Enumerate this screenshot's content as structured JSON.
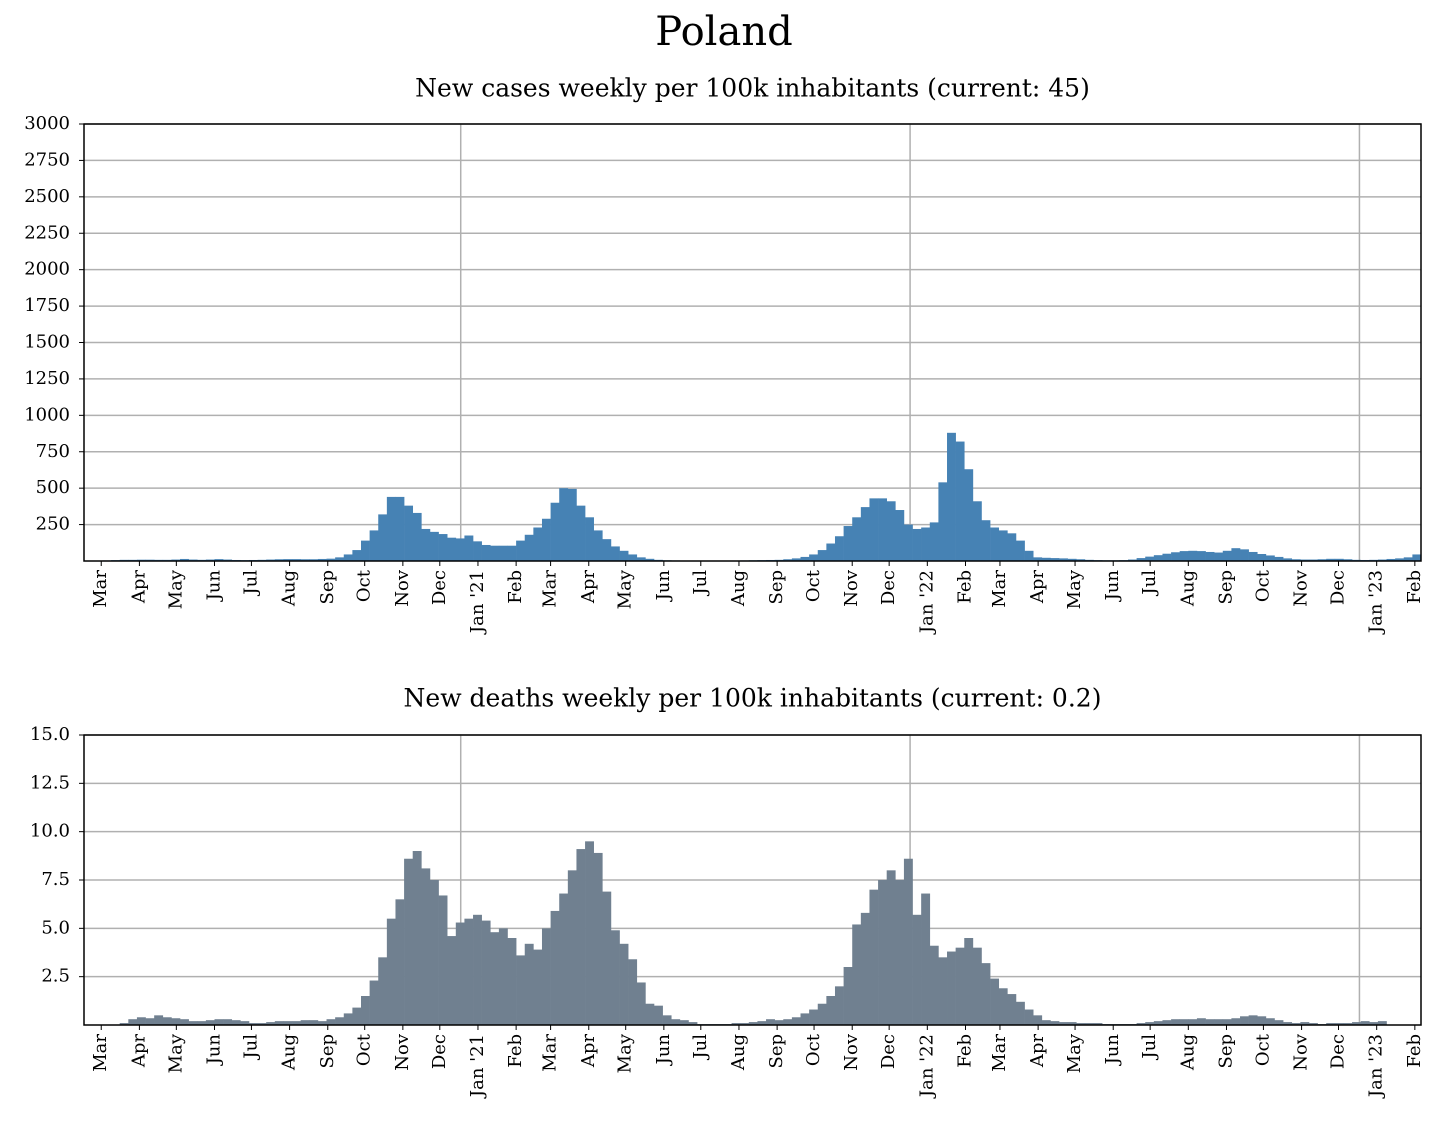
{
  "title": "Poland",
  "chart_data": [
    {
      "type": "bar",
      "title": "New cases weekly per 100k inhabitants (current: 45)",
      "color": "#4682b4",
      "x": [
        "2020-03-02",
        "2020-03-09",
        "2020-03-16",
        "2020-03-23",
        "2020-03-30",
        "2020-04-06",
        "2020-04-13",
        "2020-04-20",
        "2020-04-27",
        "2020-05-04",
        "2020-05-11",
        "2020-05-18",
        "2020-05-25",
        "2020-06-01",
        "2020-06-08",
        "2020-06-15",
        "2020-06-22",
        "2020-06-29",
        "2020-07-06",
        "2020-07-13",
        "2020-07-20",
        "2020-07-27",
        "2020-08-03",
        "2020-08-10",
        "2020-08-17",
        "2020-08-24",
        "2020-08-31",
        "2020-09-07",
        "2020-09-14",
        "2020-09-21",
        "2020-09-28",
        "2020-10-05",
        "2020-10-12",
        "2020-10-19",
        "2020-10-26",
        "2020-11-02",
        "2020-11-09",
        "2020-11-16",
        "2020-11-23",
        "2020-11-30",
        "2020-12-07",
        "2020-12-14",
        "2020-12-21",
        "2020-12-28",
        "2021-01-04",
        "2021-01-11",
        "2021-01-18",
        "2021-01-25",
        "2021-02-01",
        "2021-02-08",
        "2021-02-15",
        "2021-02-22",
        "2021-03-01",
        "2021-03-08",
        "2021-03-15",
        "2021-03-22",
        "2021-03-29",
        "2021-04-05",
        "2021-04-12",
        "2021-04-19",
        "2021-04-26",
        "2021-05-03",
        "2021-05-10",
        "2021-05-17",
        "2021-05-24",
        "2021-05-31",
        "2021-06-07",
        "2021-06-14",
        "2021-06-21",
        "2021-06-28",
        "2021-07-05",
        "2021-07-12",
        "2021-07-19",
        "2021-07-26",
        "2021-08-02",
        "2021-08-09",
        "2021-08-16",
        "2021-08-23",
        "2021-08-30",
        "2021-09-06",
        "2021-09-13",
        "2021-09-20",
        "2021-09-27",
        "2021-10-04",
        "2021-10-11",
        "2021-10-18",
        "2021-10-25",
        "2021-11-01",
        "2021-11-08",
        "2021-11-15",
        "2021-11-22",
        "2021-11-29",
        "2021-12-06",
        "2021-12-13",
        "2021-12-20",
        "2021-12-27",
        "2022-01-03",
        "2022-01-10",
        "2022-01-17",
        "2022-01-24",
        "2022-01-31",
        "2022-02-07",
        "2022-02-14",
        "2022-02-21",
        "2022-02-28",
        "2022-03-07",
        "2022-03-14",
        "2022-03-21",
        "2022-03-28",
        "2022-04-04",
        "2022-04-11",
        "2022-04-18",
        "2022-04-25",
        "2022-05-02",
        "2022-05-09",
        "2022-05-16",
        "2022-05-23",
        "2022-05-30",
        "2022-06-06",
        "2022-06-13",
        "2022-06-20",
        "2022-06-27",
        "2022-07-04",
        "2022-07-11",
        "2022-07-18",
        "2022-07-25",
        "2022-08-01",
        "2022-08-08",
        "2022-08-15",
        "2022-08-22",
        "2022-08-29",
        "2022-09-05",
        "2022-09-12",
        "2022-09-19",
        "2022-09-26",
        "2022-10-03",
        "2022-10-10",
        "2022-10-17",
        "2022-10-24",
        "2022-10-31",
        "2022-11-07",
        "2022-11-14",
        "2022-11-21",
        "2022-11-28",
        "2022-12-05",
        "2022-12-12",
        "2022-12-19",
        "2022-12-26",
        "2023-01-02",
        "2023-01-09",
        "2023-01-16",
        "2023-01-23",
        "2023-01-30",
        "2023-02-06",
        "2023-02-13"
      ],
      "values": [
        1,
        2,
        4,
        6,
        8,
        8,
        9,
        9,
        8,
        8,
        10,
        14,
        10,
        8,
        10,
        13,
        10,
        7,
        6,
        7,
        8,
        10,
        12,
        13,
        13,
        12,
        12,
        14,
        16,
        25,
        45,
        75,
        140,
        210,
        320,
        440,
        440,
        380,
        330,
        220,
        200,
        185,
        160,
        155,
        175,
        135,
        110,
        105,
        105,
        105,
        140,
        180,
        230,
        290,
        400,
        500,
        495,
        380,
        300,
        210,
        150,
        100,
        70,
        45,
        25,
        15,
        8,
        5,
        4,
        3,
        3,
        3,
        3,
        3,
        3,
        3,
        4,
        5,
        6,
        7,
        8,
        12,
        18,
        28,
        45,
        75,
        120,
        170,
        240,
        300,
        370,
        430,
        430,
        410,
        350,
        250,
        220,
        230,
        265,
        540,
        880,
        820,
        630,
        410,
        280,
        230,
        210,
        190,
        140,
        70,
        25,
        22,
        20,
        18,
        15,
        12,
        8,
        6,
        5,
        5,
        6,
        10,
        20,
        30,
        40,
        50,
        60,
        68,
        70,
        68,
        62,
        58,
        70,
        88,
        80,
        62,
        48,
        38,
        28,
        18,
        12,
        10,
        10,
        12,
        15,
        15,
        12,
        8,
        7,
        8,
        10,
        14,
        18,
        25,
        45
      ],
      "xlim": [
        "2020-03-01",
        "2023-02-20"
      ],
      "xticks": [
        {
          "value": "2020-03-15",
          "label": "Mar"
        },
        {
          "value": "2020-04-15",
          "label": "Apr"
        },
        {
          "value": "2020-05-15",
          "label": "May"
        },
        {
          "value": "2020-06-15",
          "label": "Jun"
        },
        {
          "value": "2020-07-15",
          "label": "Jul"
        },
        {
          "value": "2020-08-15",
          "label": "Aug"
        },
        {
          "value": "2020-09-15",
          "label": "Sep"
        },
        {
          "value": "2020-10-15",
          "label": "Oct"
        },
        {
          "value": "2020-11-15",
          "label": "Nov"
        },
        {
          "value": "2020-12-15",
          "label": "Dec"
        },
        {
          "value": "2021-01-15",
          "label": "Jan '21"
        },
        {
          "value": "2021-02-15",
          "label": "Feb"
        },
        {
          "value": "2021-03-15",
          "label": "Mar"
        },
        {
          "value": "2021-04-15",
          "label": "Apr"
        },
        {
          "value": "2021-05-15",
          "label": "May"
        },
        {
          "value": "2021-06-15",
          "label": "Jun"
        },
        {
          "value": "2021-07-15",
          "label": "Jul"
        },
        {
          "value": "2021-08-15",
          "label": "Aug"
        },
        {
          "value": "2021-09-15",
          "label": "Sep"
        },
        {
          "value": "2021-10-15",
          "label": "Oct"
        },
        {
          "value": "2021-11-15",
          "label": "Nov"
        },
        {
          "value": "2021-12-15",
          "label": "Dec"
        },
        {
          "value": "2022-01-15",
          "label": "Jan '22"
        },
        {
          "value": "2022-02-15",
          "label": "Feb"
        },
        {
          "value": "2022-03-15",
          "label": "Mar"
        },
        {
          "value": "2022-04-15",
          "label": "Apr"
        },
        {
          "value": "2022-05-15",
          "label": "May"
        },
        {
          "value": "2022-06-15",
          "label": "Jun"
        },
        {
          "value": "2022-07-15",
          "label": "Jul"
        },
        {
          "value": "2022-08-15",
          "label": "Aug"
        },
        {
          "value": "2022-09-15",
          "label": "Sep"
        },
        {
          "value": "2022-10-15",
          "label": "Oct"
        },
        {
          "value": "2022-11-15",
          "label": "Nov"
        },
        {
          "value": "2022-12-15",
          "label": "Dec"
        },
        {
          "value": "2023-01-15",
          "label": "Jan '23"
        },
        {
          "value": "2023-02-15",
          "label": "Feb"
        }
      ],
      "xgrid": [
        "2021-01-01",
        "2022-01-01",
        "2023-01-01"
      ],
      "ylim": [
        0,
        3000
      ],
      "yticks": [
        250,
        500,
        750,
        1000,
        1250,
        1500,
        1750,
        2000,
        2250,
        2500,
        2750,
        3000
      ],
      "grid": true
    },
    {
      "type": "bar",
      "title": "New deaths weekly per 100k inhabitants (current: 0.2)",
      "color": "#708090",
      "x": [
        "2020-03-02",
        "2020-03-09",
        "2020-03-16",
        "2020-03-23",
        "2020-03-30",
        "2020-04-06",
        "2020-04-13",
        "2020-04-20",
        "2020-04-27",
        "2020-05-04",
        "2020-05-11",
        "2020-05-18",
        "2020-05-25",
        "2020-06-01",
        "2020-06-08",
        "2020-06-15",
        "2020-06-22",
        "2020-06-29",
        "2020-07-06",
        "2020-07-13",
        "2020-07-20",
        "2020-07-27",
        "2020-08-03",
        "2020-08-10",
        "2020-08-17",
        "2020-08-24",
        "2020-08-31",
        "2020-09-07",
        "2020-09-14",
        "2020-09-21",
        "2020-09-28",
        "2020-10-05",
        "2020-10-12",
        "2020-10-19",
        "2020-10-26",
        "2020-11-02",
        "2020-11-09",
        "2020-11-16",
        "2020-11-23",
        "2020-11-30",
        "2020-12-07",
        "2020-12-14",
        "2020-12-21",
        "2020-12-28",
        "2021-01-04",
        "2021-01-11",
        "2021-01-18",
        "2021-01-25",
        "2021-02-01",
        "2021-02-08",
        "2021-02-15",
        "2021-02-22",
        "2021-03-01",
        "2021-03-08",
        "2021-03-15",
        "2021-03-22",
        "2021-03-29",
        "2021-04-05",
        "2021-04-12",
        "2021-04-19",
        "2021-04-26",
        "2021-05-03",
        "2021-05-10",
        "2021-05-17",
        "2021-05-24",
        "2021-05-31",
        "2021-06-07",
        "2021-06-14",
        "2021-06-21",
        "2021-06-28",
        "2021-07-05",
        "2021-07-12",
        "2021-07-19",
        "2021-07-26",
        "2021-08-02",
        "2021-08-09",
        "2021-08-16",
        "2021-08-23",
        "2021-08-30",
        "2021-09-06",
        "2021-09-13",
        "2021-09-20",
        "2021-09-27",
        "2021-10-04",
        "2021-10-11",
        "2021-10-18",
        "2021-10-25",
        "2021-11-01",
        "2021-11-08",
        "2021-11-15",
        "2021-11-22",
        "2021-11-29",
        "2021-12-06",
        "2021-12-13",
        "2021-12-20",
        "2021-12-27",
        "2022-01-03",
        "2022-01-10",
        "2022-01-17",
        "2022-01-24",
        "2022-01-31",
        "2022-02-07",
        "2022-02-14",
        "2022-02-21",
        "2022-02-28",
        "2022-03-07",
        "2022-03-14",
        "2022-03-21",
        "2022-03-28",
        "2022-04-04",
        "2022-04-11",
        "2022-04-18",
        "2022-04-25",
        "2022-05-02",
        "2022-05-09",
        "2022-05-16",
        "2022-05-23",
        "2022-05-30",
        "2022-06-06",
        "2022-06-13",
        "2022-06-20",
        "2022-06-27",
        "2022-07-04",
        "2022-07-11",
        "2022-07-18",
        "2022-07-25",
        "2022-08-01",
        "2022-08-08",
        "2022-08-15",
        "2022-08-22",
        "2022-08-29",
        "2022-09-05",
        "2022-09-12",
        "2022-09-19",
        "2022-09-26",
        "2022-10-03",
        "2022-10-10",
        "2022-10-17",
        "2022-10-24",
        "2022-10-31",
        "2022-11-07",
        "2022-11-14",
        "2022-11-21",
        "2022-11-28",
        "2022-12-05",
        "2022-12-12",
        "2022-12-19",
        "2022-12-26",
        "2023-01-02",
        "2023-01-09",
        "2023-01-16",
        "2023-01-23",
        "2023-01-30",
        "2023-02-06",
        "2023-02-13"
      ],
      "values": [
        0,
        0,
        0,
        0,
        0.1,
        0.3,
        0.4,
        0.35,
        0.5,
        0.4,
        0.35,
        0.3,
        0.2,
        0.2,
        0.25,
        0.3,
        0.3,
        0.25,
        0.2,
        0.1,
        0.1,
        0.15,
        0.2,
        0.2,
        0.2,
        0.25,
        0.25,
        0.2,
        0.3,
        0.4,
        0.6,
        0.9,
        1.5,
        2.3,
        3.5,
        5.5,
        6.5,
        8.6,
        9.0,
        8.1,
        7.5,
        6.7,
        4.6,
        5.3,
        5.5,
        5.7,
        5.4,
        4.8,
        5.0,
        4.5,
        3.6,
        4.2,
        3.9,
        5.0,
        5.9,
        6.8,
        8.0,
        9.1,
        9.5,
        8.9,
        6.9,
        4.9,
        4.2,
        3.4,
        2.2,
        1.1,
        1.0,
        0.5,
        0.3,
        0.25,
        0.15,
        0.05,
        0.05,
        0.05,
        0.05,
        0.1,
        0.1,
        0.15,
        0.2,
        0.3,
        0.25,
        0.3,
        0.4,
        0.6,
        0.8,
        1.1,
        1.5,
        2.0,
        3.0,
        5.2,
        5.8,
        7.0,
        7.5,
        8.0,
        7.5,
        8.6,
        5.7,
        6.8,
        4.1,
        3.5,
        3.8,
        4.0,
        4.5,
        4.0,
        3.2,
        2.4,
        1.9,
        1.6,
        1.2,
        0.8,
        0.5,
        0.25,
        0.2,
        0.15,
        0.15,
        0.1,
        0.1,
        0.1,
        0.05,
        0.05,
        0.05,
        0.05,
        0.1,
        0.15,
        0.2,
        0.25,
        0.3,
        0.3,
        0.3,
        0.35,
        0.3,
        0.3,
        0.3,
        0.35,
        0.45,
        0.5,
        0.45,
        0.35,
        0.25,
        0.15,
        0.1,
        0.15,
        0.1,
        0.05,
        0.1,
        0.1,
        0.1,
        0.15,
        0.2,
        0.15,
        0.2,
        null,
        null,
        null,
        null
      ],
      "xlim": [
        "2020-03-01",
        "2023-02-20"
      ],
      "xticks": [
        {
          "value": "2020-03-15",
          "label": "Mar"
        },
        {
          "value": "2020-04-15",
          "label": "Apr"
        },
        {
          "value": "2020-05-15",
          "label": "May"
        },
        {
          "value": "2020-06-15",
          "label": "Jun"
        },
        {
          "value": "2020-07-15",
          "label": "Jul"
        },
        {
          "value": "2020-08-15",
          "label": "Aug"
        },
        {
          "value": "2020-09-15",
          "label": "Sep"
        },
        {
          "value": "2020-10-15",
          "label": "Oct"
        },
        {
          "value": "2020-11-15",
          "label": "Nov"
        },
        {
          "value": "2020-12-15",
          "label": "Dec"
        },
        {
          "value": "2021-01-15",
          "label": "Jan '21"
        },
        {
          "value": "2021-02-15",
          "label": "Feb"
        },
        {
          "value": "2021-03-15",
          "label": "Mar"
        },
        {
          "value": "2021-04-15",
          "label": "Apr"
        },
        {
          "value": "2021-05-15",
          "label": "May"
        },
        {
          "value": "2021-06-15",
          "label": "Jun"
        },
        {
          "value": "2021-07-15",
          "label": "Jul"
        },
        {
          "value": "2021-08-15",
          "label": "Aug"
        },
        {
          "value": "2021-09-15",
          "label": "Sep"
        },
        {
          "value": "2021-10-15",
          "label": "Oct"
        },
        {
          "value": "2021-11-15",
          "label": "Nov"
        },
        {
          "value": "2021-12-15",
          "label": "Dec"
        },
        {
          "value": "2022-01-15",
          "label": "Jan '22"
        },
        {
          "value": "2022-02-15",
          "label": "Feb"
        },
        {
          "value": "2022-03-15",
          "label": "Mar"
        },
        {
          "value": "2022-04-15",
          "label": "Apr"
        },
        {
          "value": "2022-05-15",
          "label": "May"
        },
        {
          "value": "2022-06-15",
          "label": "Jun"
        },
        {
          "value": "2022-07-15",
          "label": "Jul"
        },
        {
          "value": "2022-08-15",
          "label": "Aug"
        },
        {
          "value": "2022-09-15",
          "label": "Sep"
        },
        {
          "value": "2022-10-15",
          "label": "Oct"
        },
        {
          "value": "2022-11-15",
          "label": "Nov"
        },
        {
          "value": "2022-12-15",
          "label": "Dec"
        },
        {
          "value": "2023-01-15",
          "label": "Jan '23"
        },
        {
          "value": "2023-02-15",
          "label": "Feb"
        }
      ],
      "xgrid": [
        "2021-01-01",
        "2022-01-01",
        "2023-01-01"
      ],
      "ylim": [
        0,
        15
      ],
      "yticks": [
        2.5,
        {
          "value": 5,
          "label": "5.0"
        },
        7.5,
        {
          "value": 10,
          "label": "10.0"
        },
        12.5,
        {
          "value": 15,
          "label": "15.0"
        }
      ],
      "grid": true
    }
  ]
}
